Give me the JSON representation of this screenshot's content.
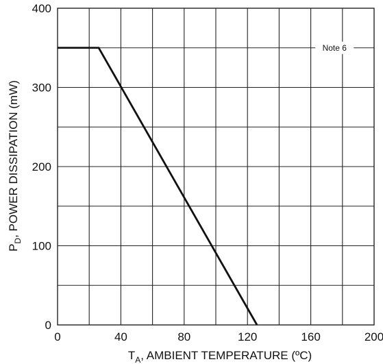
{
  "chart_data": {
    "type": "line",
    "xlabel": {
      "prefix": "T",
      "subscript": "A",
      "suffix": ", AMBIENT TEMPERATURE (ºC)"
    },
    "ylabel": {
      "prefix": "P",
      "subscript": "D",
      "suffix": ", POWER DISSIPATION (mW)"
    },
    "xlim": [
      0,
      200
    ],
    "ylim": [
      0,
      400
    ],
    "x_ticks": [
      0,
      40,
      80,
      120,
      160,
      200
    ],
    "y_ticks": [
      0,
      100,
      200,
      300,
      400
    ],
    "x_grid_step": 20,
    "y_grid_step": 50,
    "grid": true,
    "series": [
      {
        "x": [
          0,
          26,
          126
        ],
        "y": [
          350,
          350,
          0
        ]
      }
    ],
    "annotations": [
      {
        "text": "Note 6",
        "x": 175,
        "y": 350
      }
    ]
  }
}
